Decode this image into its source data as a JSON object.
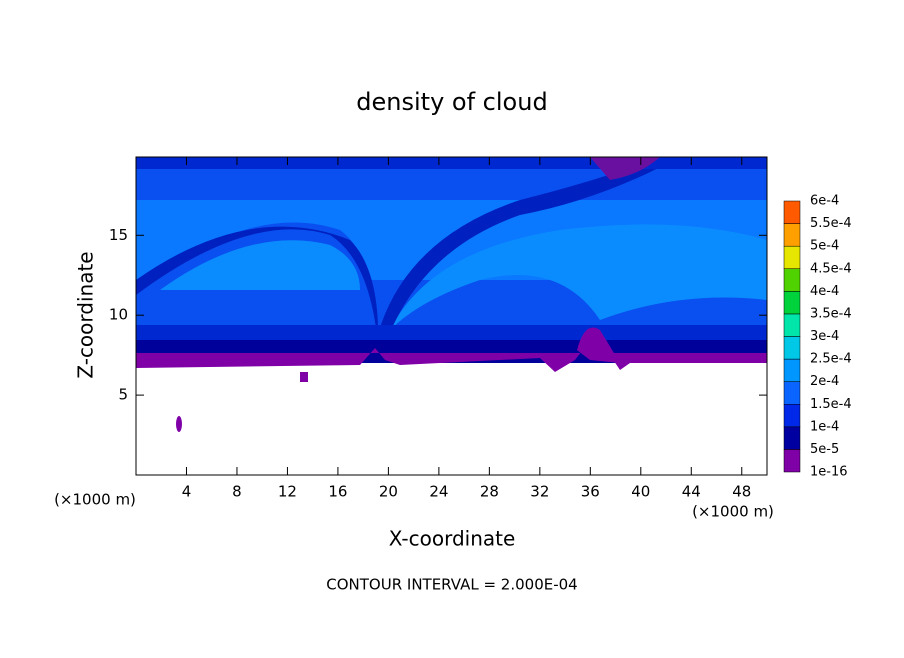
{
  "chart_data": {
    "type": "contour",
    "title": "density of cloud",
    "xlabel": "X-coordinate",
    "ylabel": "Z-coordinate",
    "xunit": "(×1000 m)",
    "yunit": "(×1000 m)",
    "note": "CONTOUR INTERVAL = 2.000E-04",
    "xlim": [
      0,
      50
    ],
    "ylim": [
      0,
      19.9
    ],
    "xticks": [
      4,
      8,
      12,
      16,
      20,
      24,
      28,
      32,
      36,
      40,
      44,
      48
    ],
    "yticks": [
      5,
      10,
      15
    ],
    "colorbar": {
      "levels": [
        {
          "value": 1e-16,
          "label": "1e-16"
        },
        {
          "value": 5e-05,
          "label": "5e-5"
        },
        {
          "value": 0.0001,
          "label": "1e-4"
        },
        {
          "value": 0.00015,
          "label": "1.5e-4"
        },
        {
          "value": 0.0002,
          "label": "2e-4"
        },
        {
          "value": 0.00025,
          "label": "2.5e-4"
        },
        {
          "value": 0.0003,
          "label": "3e-4"
        },
        {
          "value": 0.00035,
          "label": "3.5e-4"
        },
        {
          "value": 0.0004,
          "label": "4e-4"
        },
        {
          "value": 0.00045,
          "label": "4.5e-4"
        },
        {
          "value": 0.0005,
          "label": "5e-4"
        },
        {
          "value": 0.00055,
          "label": "5.5e-4"
        },
        {
          "value": 0.0006,
          "label": "6e-4"
        }
      ],
      "colors": [
        "#8000a8",
        "#0000a0",
        "#0028e8",
        "#0a64ff",
        "#0096ff",
        "#00c8e6",
        "#00e6aa",
        "#00d23c",
        "#50d200",
        "#e6e600",
        "#ffa000",
        "#ff5a00",
        "#ff2828",
        "#ff8c8c"
      ]
    }
  }
}
